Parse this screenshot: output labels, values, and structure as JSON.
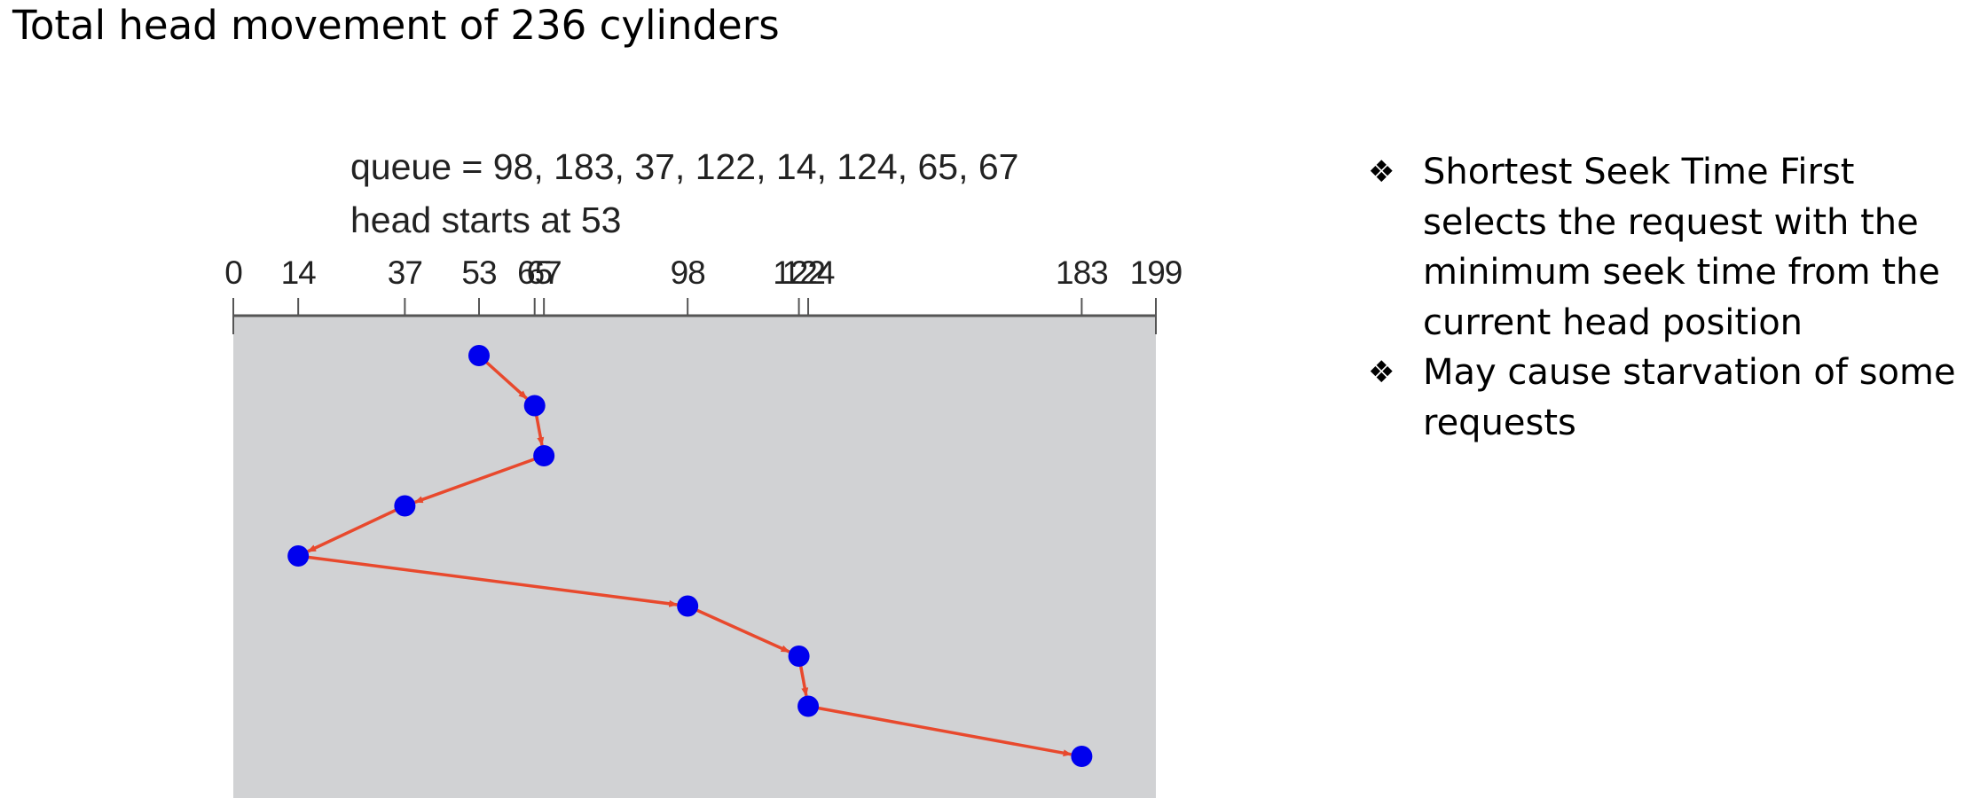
{
  "title": "Total head movement of 236 cylinders",
  "diagram": {
    "queue_label": "queue = 98, 183, 37, 122, 14, 124, 65, 67",
    "head_label": "head starts at 53",
    "axis": {
      "min": 0,
      "max": 199
    },
    "ticks": [
      {
        "value": 0,
        "label": "0"
      },
      {
        "value": 14,
        "label": "14"
      },
      {
        "value": 37,
        "label": "37"
      },
      {
        "value": 53,
        "label": "53"
      },
      {
        "value": 65,
        "label": "65"
      },
      {
        "value": 67,
        "label": "67"
      },
      {
        "value": 98,
        "label": "98"
      },
      {
        "value": 122,
        "label": "122"
      },
      {
        "value": 124,
        "label": "124"
      },
      {
        "value": 183,
        "label": "183"
      },
      {
        "value": 199,
        "label": "199"
      }
    ],
    "service_order": [
      53,
      65,
      67,
      37,
      14,
      98,
      122,
      124,
      183
    ],
    "colors": {
      "panel": "#d1d2d4",
      "point": "#0000ee",
      "arrow": "#e8492d",
      "axis": "#555555"
    }
  },
  "bullets": [
    {
      "marker": "❖",
      "text": "Shortest Seek Time First selects the request with the minimum seek time from the current head position"
    },
    {
      "marker": "❖",
      "text": "May cause starvation of some requests"
    }
  ]
}
